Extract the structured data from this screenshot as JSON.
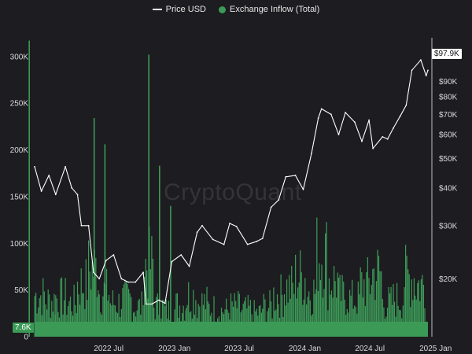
{
  "legend": {
    "price_label": "Price USD",
    "inflow_label": "Exchange Inflow (Total)"
  },
  "watermark": "CryptoQuant",
  "tags": {
    "price_current": "$97.9K",
    "inflow_current": "7.6K"
  },
  "colors": {
    "background": "#1d1c20",
    "price_line": "#ffffff",
    "inflow_bars": "#3c9a57",
    "axis_text": "#d9d9d9"
  },
  "chart_data": {
    "type": "line",
    "x_ticks": [
      "2022 Jul",
      "2023 Jan",
      "2023 Jul",
      "2024 Jan",
      "2024 Jul",
      "2025 Jan"
    ],
    "left_axis": {
      "ticks": [
        "0",
        "50K",
        "100K",
        "150K",
        "200K",
        "250K",
        "300K"
      ],
      "ylim": [
        0,
        320000
      ]
    },
    "right_axis": {
      "scale": "log",
      "ticks": [
        "$20K",
        "$30K",
        "$40K",
        "$50K",
        "$60K",
        "$70K",
        "$80K",
        "$90K"
      ],
      "ylim": [
        13500,
        110000
      ]
    },
    "series": [
      {
        "name": "Price USD",
        "axis": "right",
        "x": [
          "2022-01-01",
          "2022-01-20",
          "2022-02-10",
          "2022-03-01",
          "2022-03-28",
          "2022-04-15",
          "2022-05-01",
          "2022-05-12",
          "2022-06-01",
          "2022-06-15",
          "2022-07-01",
          "2022-07-20",
          "2022-08-10",
          "2022-09-01",
          "2022-09-20",
          "2022-10-10",
          "2022-11-01",
          "2022-11-09",
          "2022-11-25",
          "2022-12-15",
          "2023-01-01",
          "2023-01-20",
          "2023-02-15",
          "2023-03-10",
          "2023-04-01",
          "2023-04-15",
          "2023-05-15",
          "2023-06-15",
          "2023-07-01",
          "2023-07-20",
          "2023-08-20",
          "2023-09-15",
          "2023-10-01",
          "2023-10-25",
          "2023-11-15",
          "2023-12-05",
          "2024-01-01",
          "2024-01-23",
          "2024-02-15",
          "2024-03-05",
          "2024-03-14",
          "2024-04-10",
          "2024-05-01",
          "2024-05-20",
          "2024-06-15",
          "2024-07-05",
          "2024-07-25",
          "2024-08-05",
          "2024-09-01",
          "2024-09-15",
          "2024-10-01",
          "2024-10-20",
          "2024-11-06",
          "2024-11-22",
          "2024-12-17",
          "2025-01-01",
          "2025-01-06"
        ],
        "y": [
          47000,
          39000,
          44000,
          38000,
          47000,
          40000,
          38000,
          30000,
          30000,
          21000,
          20000,
          23000,
          24000,
          20000,
          19500,
          19500,
          21000,
          16500,
          16500,
          17000,
          16600,
          22800,
          24000,
          22000,
          28500,
          30000,
          27000,
          26000,
          30500,
          29800,
          26000,
          26600,
          27200,
          34500,
          36500,
          43500,
          44000,
          39500,
          52000,
          68000,
          73000,
          70000,
          60000,
          71000,
          66000,
          57000,
          67000,
          54000,
          59000,
          58000,
          63000,
          69000,
          75000,
          98000,
          106000,
          94000,
          97900
        ]
      },
      {
        "name": "Exchange Inflow (Total)",
        "axis": "left",
        "type": "bar",
        "x": [
          "2022-01",
          "2022-02",
          "2022-03",
          "2022-04",
          "2022-05",
          "2022-06",
          "2022-07",
          "2022-08",
          "2022-09",
          "2022-10",
          "2022-11",
          "2022-12",
          "2023-01",
          "2023-02",
          "2023-03",
          "2023-04",
          "2023-05",
          "2023-06",
          "2023-07",
          "2023-08",
          "2023-09",
          "2023-10",
          "2023-11",
          "2023-12",
          "2024-01",
          "2024-02",
          "2024-03",
          "2024-04",
          "2024-05",
          "2024-06",
          "2024-07",
          "2024-08",
          "2024-09",
          "2024-10",
          "2024-11",
          "2024-12"
        ],
        "y": [
          55000,
          48000,
          52000,
          45000,
          70000,
          90000,
          60000,
          45000,
          50000,
          40000,
          95000,
          40000,
          35000,
          42000,
          55000,
          45000,
          38000,
          35000,
          40000,
          36000,
          32000,
          40000,
          55000,
          65000,
          80000,
          60000,
          110000,
          75000,
          55000,
          50000,
          70000,
          85000,
          45000,
          50000,
          80000,
          70000
        ],
        "peaks": [
          {
            "x": "2022-01",
            "y": 317000
          },
          {
            "x": "2022-06",
            "y": 234000
          },
          {
            "x": "2022-07",
            "y": 206000
          },
          {
            "x": "2022-11",
            "y": 302000
          },
          {
            "x": "2022-12",
            "y": 183000
          },
          {
            "x": "2023-01",
            "y": 140000
          }
        ],
        "latest": 7600
      }
    ]
  }
}
